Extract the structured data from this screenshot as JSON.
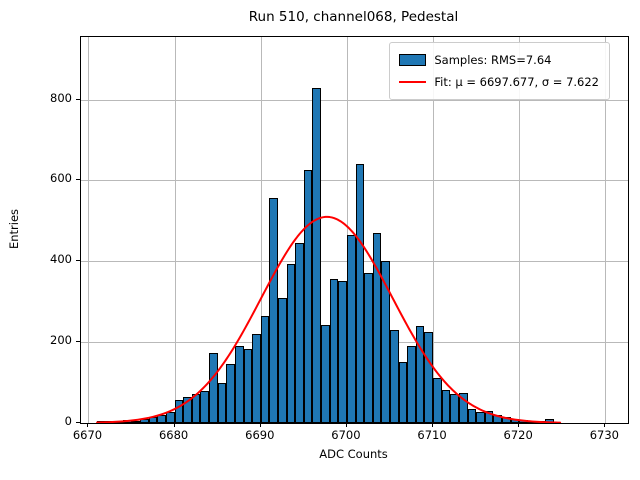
{
  "figure": {
    "title": "Run 510, channel068, Pedestal",
    "xlabel": "ADC Counts",
    "ylabel": "Entries"
  },
  "legend": {
    "samples_label": "Samples: RMS=7.64",
    "fit_label": "Fit: μ = 6697.677, σ = 7.622"
  },
  "chart_data": {
    "type": "bar",
    "subtype": "histogram-with-gaussian-fit",
    "title": "Run 510, channel068, Pedestal",
    "xlabel": "ADC Counts",
    "ylabel": "Entries",
    "xlim": [
      6669.13,
      6732.63
    ],
    "ylim": [
      0,
      955
    ],
    "x_ticks": [
      6670,
      6680,
      6690,
      6700,
      6710,
      6720,
      6730
    ],
    "y_ticks": [
      0,
      200,
      400,
      600,
      800
    ],
    "grid": true,
    "legend_position": "upper right",
    "legend_entries": [
      "Samples: RMS=7.64",
      "Fit: μ = 6697.677, σ = 7.622"
    ],
    "histogram": {
      "bin_width": 1,
      "bin_left_edges": [
        6671,
        6672,
        6673,
        6674,
        6675,
        6676,
        6677,
        6678,
        6679,
        6680,
        6681,
        6682,
        6683,
        6684,
        6685,
        6686,
        6687,
        6688,
        6689,
        6690,
        6691,
        6692,
        6693,
        6694,
        6695,
        6696,
        6697,
        6698,
        6699,
        6700,
        6701,
        6702,
        6703,
        6704,
        6705,
        6706,
        6707,
        6708,
        6709,
        6710,
        6711,
        6712,
        6713,
        6714,
        6715,
        6716,
        6717,
        6718,
        6719,
        6720,
        6721,
        6722,
        6723
      ],
      "counts": [
        6,
        3,
        5,
        8,
        6,
        10,
        15,
        20,
        28,
        58,
        65,
        71,
        78,
        174,
        100,
        145,
        190,
        184,
        220,
        264,
        556,
        309,
        394,
        445,
        625,
        830,
        242,
        356,
        351,
        466,
        640,
        372,
        471,
        400,
        230,
        150,
        190,
        240,
        225,
        112,
        81,
        72,
        74,
        35,
        27,
        30,
        20,
        14,
        10,
        7,
        5,
        4,
        9
      ]
    },
    "fit": {
      "type": "gaussian",
      "mu": 6697.677,
      "sigma": 7.622,
      "amplitude": 510,
      "x_range": [
        6671,
        6724.8
      ]
    },
    "stats": {
      "rms": 7.64,
      "mu": 6697.677,
      "sigma": 7.622
    },
    "colors": {
      "bar_fill": "#1f77b4",
      "bar_edge": "#000000",
      "fit_line": "#ff0000",
      "grid": "#b9b9b9",
      "background": "#ffffff"
    }
  }
}
